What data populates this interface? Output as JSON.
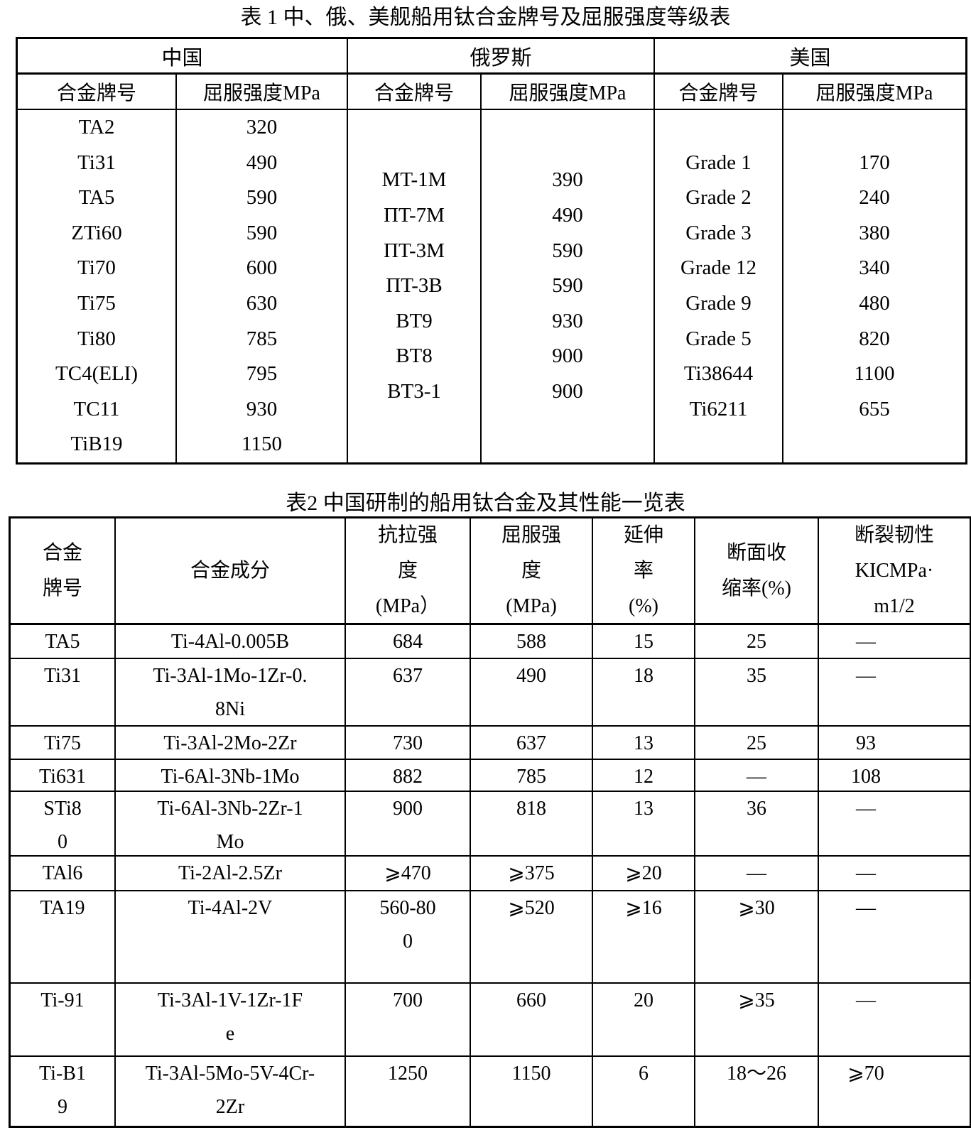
{
  "table1": {
    "title": "表 1 中、俄、美舰船用钛合金牌号及屈服强度等级表",
    "col_headers": {
      "alloy": "合金牌号",
      "yield": "屈服强度MPa"
    },
    "countries": [
      {
        "key": "china",
        "name": "中国",
        "alloys": [
          [
            "TA2",
            "320"
          ],
          [
            "Ti31",
            "490"
          ],
          [
            "TA5",
            "590"
          ],
          [
            "ZTi60",
            "590"
          ],
          [
            "Ti70",
            "600"
          ],
          [
            "Ti75",
            "630"
          ],
          [
            "Ti80",
            "785"
          ],
          [
            "TC4(ELI)",
            "795"
          ],
          [
            "TC11",
            "930"
          ],
          [
            "TiB19",
            "1150"
          ]
        ]
      },
      {
        "key": "russia",
        "name": "俄罗斯",
        "alloys": [
          [
            "MT-1M",
            "390"
          ],
          [
            "ПT-7M",
            "490"
          ],
          [
            "ПT-3M",
            "590"
          ],
          [
            "ПT-3B",
            "590"
          ],
          [
            "BT9",
            "930"
          ],
          [
            "BT8",
            "900"
          ],
          [
            "BT3-1",
            "900"
          ]
        ]
      },
      {
        "key": "usa",
        "name": "美国",
        "alloys": [
          [
            "Grade 1",
            "170"
          ],
          [
            "Grade 2",
            "240"
          ],
          [
            "Grade 3",
            "380"
          ],
          [
            "Grade 12",
            "340"
          ],
          [
            "Grade 9",
            "480"
          ],
          [
            "Grade 5",
            "820"
          ],
          [
            "Ti38644",
            "1100"
          ],
          [
            "Ti6211",
            "655"
          ]
        ]
      }
    ]
  },
  "table2": {
    "title": "表2 中国研制的船用钛合金及其性能一览表",
    "headers": [
      "合金\n牌号",
      "合金成分",
      "抗拉强\n度\n(MPa）",
      "屈服强\n度\n(MPa)",
      "延伸\n率\n(%)",
      "断面收\n缩率(%)",
      "断裂韧性\nKICMPa·\nm1/2"
    ],
    "rows": [
      {
        "cells": [
          "TA5",
          "Ti-4Al-0.005B",
          "684",
          "588",
          "15",
          "25",
          "—"
        ]
      },
      {
        "cells": [
          "Ti31",
          "Ti-3Al-1Mo-1Zr-0.\n8Ni",
          "637",
          "490",
          "18",
          "35",
          "—"
        ]
      },
      {
        "cells": [
          "Ti75",
          "Ti-3Al-2Mo-2Zr",
          "730",
          "637",
          "13",
          "25",
          "93"
        ]
      },
      {
        "cells": [
          "Ti631",
          "Ti-6Al-3Nb-1Mo",
          "882",
          "785",
          "12",
          "—",
          "108"
        ]
      },
      {
        "cells": [
          "STi8\n0",
          "Ti-6Al-3Nb-2Zr-1\nMo",
          "900",
          "818",
          "13",
          "36",
          "—"
        ]
      },
      {
        "cells": [
          "TAl6",
          "Ti-2Al-2.5Zr",
          "⩾470",
          "⩾375",
          "⩾20",
          "—",
          "—"
        ]
      },
      {
        "cells": [
          "TA19",
          "Ti-4Al-2V",
          "560-80\n0",
          "⩾520",
          "⩾16",
          "⩾30",
          "—"
        ]
      },
      {
        "cells": [
          "Ti-91",
          "Ti-3Al-1V-1Zr-1F\ne",
          "700",
          "660",
          "20",
          "⩾35",
          "—"
        ]
      },
      {
        "cells": [
          "Ti-B1\n9",
          "Ti-3Al-5Mo-5V-4Cr-\n2Zr",
          "1250",
          "1150",
          "6",
          "18～26",
          "⩾70"
        ]
      }
    ]
  }
}
